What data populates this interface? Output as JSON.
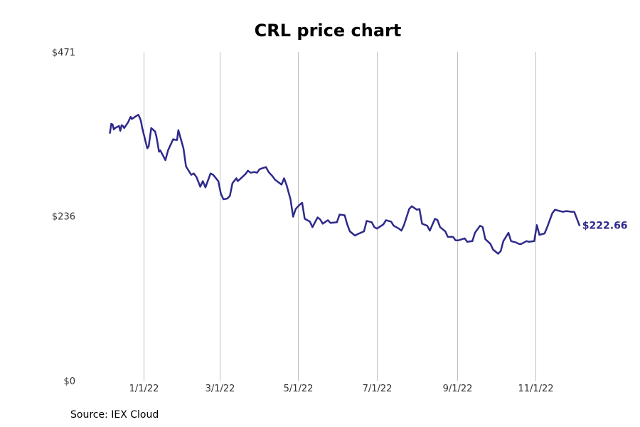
{
  "chart_data": {
    "type": "line",
    "title": "CRL price chart",
    "source": "Source: IEX Cloud",
    "ylim": [
      0,
      471
    ],
    "y_ticks": [
      {
        "value": 0,
        "label": "$0"
      },
      {
        "value": 236,
        "label": "$236"
      },
      {
        "value": 471,
        "label": "$471"
      }
    ],
    "x_range": [
      "2021-11-18",
      "2022-12-20"
    ],
    "x_ticks": [
      {
        "date": "2022-01-01",
        "label": "1/1/22"
      },
      {
        "date": "2022-03-01",
        "label": "3/1/22"
      },
      {
        "date": "2022-05-01",
        "label": "5/1/22"
      },
      {
        "date": "2022-07-01",
        "label": "7/1/22"
      },
      {
        "date": "2022-09-01",
        "label": "9/1/22"
      },
      {
        "date": "2022-11-01",
        "label": "11/1/22"
      }
    ],
    "grid": {
      "vertical": true,
      "horizontal": false
    },
    "line_color": "#2e2a8a",
    "last_value_label": "$222.66",
    "series": [
      {
        "x": [
          "2021-12-06",
          "2021-12-07",
          "2021-12-08",
          "2021-12-09",
          "2021-12-10",
          "2021-12-13",
          "2021-12-14",
          "2021-12-15",
          "2021-12-16",
          "2021-12-17",
          "2021-12-20",
          "2021-12-21",
          "2021-12-22",
          "2021-12-23",
          "2021-12-27",
          "2021-12-28",
          "2021-12-29",
          "2021-12-30",
          "2021-12-31",
          "2022-01-03",
          "2022-01-04",
          "2022-01-05",
          "2022-01-07",
          "2022-01-10",
          "2022-01-11",
          "2022-01-12",
          "2022-01-13",
          "2022-01-14",
          "2022-01-18",
          "2022-01-20",
          "2022-01-24",
          "2022-01-26",
          "2022-01-27",
          "2022-01-28",
          "2022-02-01",
          "2022-02-03",
          "2022-02-07",
          "2022-02-09",
          "2022-02-11",
          "2022-02-14",
          "2022-02-16",
          "2022-02-18",
          "2022-02-22",
          "2022-02-24",
          "2022-02-28",
          "2022-03-02",
          "2022-03-04",
          "2022-03-07",
          "2022-03-09",
          "2022-03-11",
          "2022-03-14",
          "2022-03-15",
          "2022-03-17",
          "2022-03-21",
          "2022-03-23",
          "2022-03-25",
          "2022-03-28",
          "2022-03-30",
          "2022-04-01",
          "2022-04-04",
          "2022-04-06",
          "2022-04-08",
          "2022-04-11",
          "2022-04-13",
          "2022-04-18",
          "2022-04-20",
          "2022-04-22",
          "2022-04-25",
          "2022-04-27",
          "2022-04-29",
          "2022-05-02",
          "2022-05-04",
          "2022-05-06",
          "2022-05-10",
          "2022-05-12",
          "2022-05-16",
          "2022-05-18",
          "2022-05-20",
          "2022-05-24",
          "2022-05-26",
          "2022-05-31",
          "2022-06-02",
          "2022-06-06",
          "2022-06-08",
          "2022-06-10",
          "2022-06-14",
          "2022-06-16",
          "2022-06-21",
          "2022-06-23",
          "2022-06-27",
          "2022-06-29",
          "2022-07-01",
          "2022-07-06",
          "2022-07-08",
          "2022-07-12",
          "2022-07-14",
          "2022-07-18",
          "2022-07-20",
          "2022-07-22",
          "2022-07-26",
          "2022-07-28",
          "2022-08-01",
          "2022-08-03",
          "2022-08-05",
          "2022-08-09",
          "2022-08-11",
          "2022-08-15",
          "2022-08-17",
          "2022-08-19",
          "2022-08-23",
          "2022-08-25",
          "2022-08-29",
          "2022-08-31",
          "2022-09-02",
          "2022-09-07",
          "2022-09-09",
          "2022-09-13",
          "2022-09-15",
          "2022-09-19",
          "2022-09-21",
          "2022-09-23",
          "2022-09-27",
          "2022-09-29",
          "2022-10-03",
          "2022-10-05",
          "2022-10-07",
          "2022-10-11",
          "2022-10-13",
          "2022-10-17",
          "2022-10-19",
          "2022-10-21",
          "2022-10-25",
          "2022-10-27",
          "2022-10-31",
          "2022-11-02",
          "2022-11-04",
          "2022-11-08",
          "2022-11-10",
          "2022-11-14",
          "2022-11-16",
          "2022-11-18",
          "2022-11-22",
          "2022-11-25",
          "2022-11-29",
          "2022-12-01",
          "2022-12-05"
        ],
        "values": [
          355,
          368,
          367,
          360,
          362,
          365,
          358,
          366,
          365,
          362,
          370,
          374,
          378,
          375,
          380,
          381,
          377,
          372,
          362,
          340,
          333,
          336,
          362,
          357,
          350,
          340,
          328,
          330,
          316,
          330,
          346,
          345,
          345,
          359,
          333,
          307,
          295,
          297,
          292,
          278,
          286,
          277,
          297,
          295,
          286,
          268,
          260,
          261,
          265,
          283,
          290,
          286,
          289,
          296,
          301,
          298,
          299,
          298,
          303,
          305,
          306,
          299,
          293,
          288,
          281,
          290,
          280,
          260,
          235,
          246,
          252,
          255,
          232,
          228,
          220,
          234,
          231,
          225,
          230,
          226,
          227,
          238,
          237,
          224,
          214,
          208,
          210,
          214,
          229,
          227,
          220,
          218,
          224,
          230,
          228,
          222,
          218,
          215,
          223,
          246,
          250,
          245,
          246,
          225,
          222,
          215,
          232,
          230,
          220,
          214,
          206,
          206,
          201,
          201,
          204,
          199,
          200,
          212,
          222,
          220,
          203,
          196,
          188,
          182,
          186,
          200,
          212,
          200,
          198,
          196,
          196,
          200,
          199,
          200,
          223,
          209,
          211,
          220,
          240,
          245,
          244,
          242,
          243,
          242,
          242,
          222.66
        ]
      }
    ]
  }
}
